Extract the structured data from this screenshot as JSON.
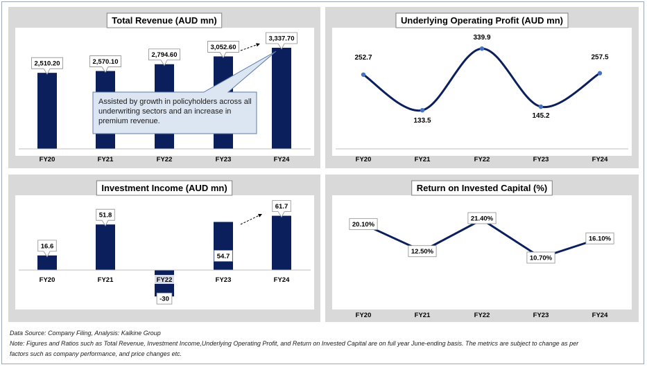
{
  "colors": {
    "bar": "#0a1f5c",
    "line": "#0a1f5c",
    "marker": "#4472c4",
    "panel_bg": "#d9d9d9",
    "plot_bg": "#ffffff",
    "callout_bg": "#dce6f2",
    "callout_border": "#5b7ba6"
  },
  "footer": {
    "source": "Data Source: Company Filing, Analysis: Kalkine Group",
    "note": "Note: Figures and Ratios such as Total Revenue, Investment Income,Underlying Operating Profit, and Return on Invested Capital are on full year June-ending basis. The metrics are subject to change as per",
    "note2": "factors such as company performance, and price changes etc."
  },
  "chart_data": [
    {
      "id": "revenue",
      "type": "bar",
      "title": "Total Revenue (AUD mn)",
      "categories": [
        "FY20",
        "FY21",
        "FY22",
        "FY23",
        "FY24"
      ],
      "values": [
        2510.2,
        2570.1,
        2794.6,
        3052.6,
        3337.7
      ],
      "labels": [
        "2,510.20",
        "2,570.10",
        "2,794.60",
        "3,052.60",
        "3,337.70"
      ],
      "ylim": [
        0,
        4000
      ],
      "grid": false,
      "annotation": "Assisted by growth in policyholders across all underwriting sectors and an increase in premium revenue."
    },
    {
      "id": "profit",
      "type": "line",
      "title": "Underlying Operating Profit (AUD mn)",
      "categories": [
        "FY20",
        "FY21",
        "FY22",
        "FY23",
        "FY24"
      ],
      "values": [
        252.7,
        133.5,
        339.9,
        145.2,
        257.5
      ],
      "labels": [
        "252.7",
        "133.5",
        "339.9",
        "145.2",
        "257.5"
      ],
      "smooth": true,
      "grid": false
    },
    {
      "id": "income",
      "type": "bar",
      "title": "Investment Income (AUD mn)",
      "categories": [
        "FY20",
        "FY21",
        "FY22",
        "FY23",
        "FY24"
      ],
      "values": [
        16.6,
        51.8,
        -30,
        54.7,
        61.7
      ],
      "labels": [
        "16.6",
        "51.8",
        "-30",
        "54.7",
        "61.7"
      ],
      "ylim": [
        -40,
        80
      ],
      "grid": false
    },
    {
      "id": "roic",
      "type": "line",
      "title": "Return on Invested Capital (%)",
      "categories": [
        "FY20",
        "FY21",
        "FY22",
        "FY23",
        "FY24"
      ],
      "values": [
        20.1,
        12.5,
        21.4,
        10.7,
        16.1
      ],
      "labels": [
        "20.10%",
        "12.50%",
        "21.40%",
        "10.70%",
        "16.10%"
      ],
      "smooth": false,
      "grid": false
    }
  ]
}
